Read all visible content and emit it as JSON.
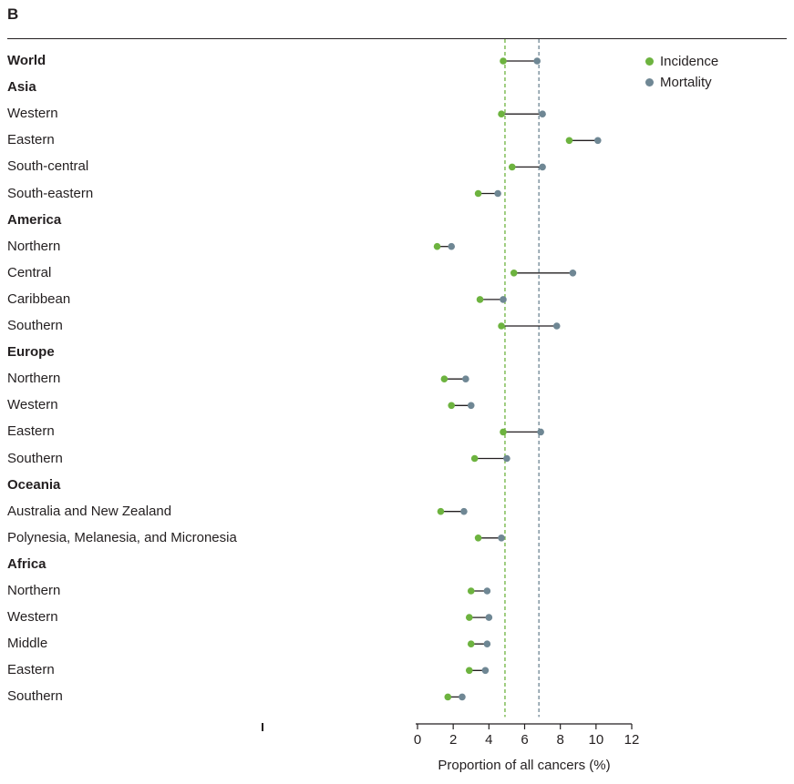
{
  "panel_label": "B",
  "chart_data": {
    "type": "dumbbell",
    "xlabel": "Proportion of all cancers (%)",
    "xlim": [
      0,
      12
    ],
    "xticks": [
      0,
      2,
      4,
      6,
      8,
      10,
      12
    ],
    "xtick_labels": [
      "0",
      "2",
      "4",
      "6",
      "8",
      "10",
      "12"
    ],
    "grid": false,
    "legend_position": "top-right",
    "colors": {
      "incidence": "#6db33f",
      "mortality": "#6f8794",
      "connector": "#231f20"
    },
    "series": [
      {
        "name": "Incidence",
        "color": "#6db33f"
      },
      {
        "name": "Mortality",
        "color": "#6f8794"
      }
    ],
    "reference_lines": [
      {
        "series": "Incidence",
        "x": 4.9,
        "style": "dashed",
        "color": "#6db33f"
      },
      {
        "series": "Mortality",
        "x": 6.8,
        "style": "dashed",
        "color": "#6f8794"
      }
    ],
    "rows": [
      {
        "label": "World",
        "region": true,
        "incidence": 4.8,
        "mortality": 6.7
      },
      {
        "label": "Asia",
        "region": true,
        "incidence": null,
        "mortality": null
      },
      {
        "label": "Western",
        "region": false,
        "incidence": 4.7,
        "mortality": 7.0
      },
      {
        "label": "Eastern",
        "region": false,
        "incidence": 8.5,
        "mortality": 10.1
      },
      {
        "label": "South-central",
        "region": false,
        "incidence": 5.3,
        "mortality": 7.0
      },
      {
        "label": "South-eastern",
        "region": false,
        "incidence": 3.4,
        "mortality": 4.5
      },
      {
        "label": "America",
        "region": true,
        "incidence": null,
        "mortality": null
      },
      {
        "label": "Northern",
        "region": false,
        "incidence": 1.1,
        "mortality": 1.9
      },
      {
        "label": "Central",
        "region": false,
        "incidence": 5.4,
        "mortality": 8.7
      },
      {
        "label": "Caribbean",
        "region": false,
        "incidence": 3.5,
        "mortality": 4.8
      },
      {
        "label": "Southern",
        "region": false,
        "incidence": 4.7,
        "mortality": 7.8
      },
      {
        "label": "Europe",
        "region": true,
        "incidence": null,
        "mortality": null
      },
      {
        "label": "Northern",
        "region": false,
        "incidence": 1.5,
        "mortality": 2.7
      },
      {
        "label": "Western",
        "region": false,
        "incidence": 1.9,
        "mortality": 3.0
      },
      {
        "label": "Eastern",
        "region": false,
        "incidence": 4.8,
        "mortality": 6.9
      },
      {
        "label": "Southern",
        "region": false,
        "incidence": 3.2,
        "mortality": 5.0
      },
      {
        "label": "Oceania",
        "region": true,
        "incidence": null,
        "mortality": null
      },
      {
        "label": "Australia and New Zealand",
        "region": false,
        "incidence": 1.3,
        "mortality": 2.6
      },
      {
        "label": "Polynesia, Melanesia, and Micronesia",
        "region": false,
        "incidence": 3.4,
        "mortality": 4.7
      },
      {
        "label": "Africa",
        "region": true,
        "incidence": null,
        "mortality": null
      },
      {
        "label": "Northern",
        "region": false,
        "incidence": 3.0,
        "mortality": 3.9
      },
      {
        "label": "Western",
        "region": false,
        "incidence": 2.9,
        "mortality": 4.0
      },
      {
        "label": "Middle",
        "region": false,
        "incidence": 3.0,
        "mortality": 3.9
      },
      {
        "label": "Eastern",
        "region": false,
        "incidence": 2.9,
        "mortality": 3.8
      },
      {
        "label": "Southern",
        "region": false,
        "incidence": 1.7,
        "mortality": 2.5
      }
    ]
  }
}
